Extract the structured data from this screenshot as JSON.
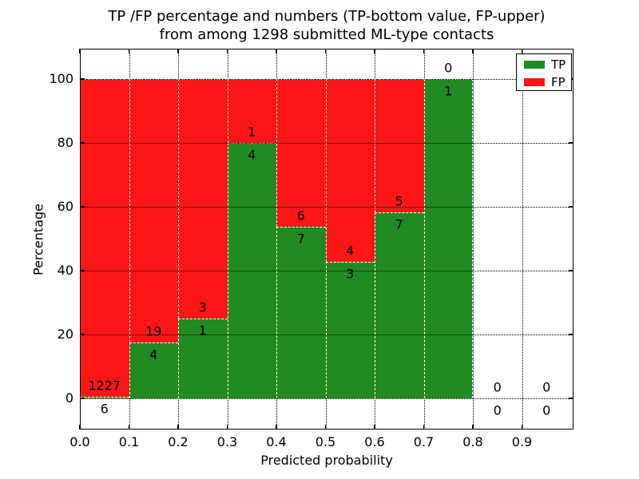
{
  "chart_data": {
    "type": "bar",
    "variant": "stacked-percentage",
    "title": "TP /FP percentage and numbers (TP-bottom value, FP-upper)\nfrom among 1298 submitted ML-type contacts",
    "xlabel": "Predicted probability",
    "ylabel": "Percentage",
    "total_submitted": 1298,
    "xlim": [
      0.0,
      1.0
    ],
    "ylim": [
      -10,
      110
    ],
    "bin_width": 0.1,
    "grid": true,
    "categories": [
      "0.0-0.1",
      "0.1-0.2",
      "0.2-0.3",
      "0.3-0.4",
      "0.4-0.5",
      "0.5-0.6",
      "0.6-0.7",
      "0.7-0.8",
      "0.8-0.9",
      "0.9-1.0"
    ],
    "x_ticks": [
      "0.0",
      "0.1",
      "0.2",
      "0.3",
      "0.4",
      "0.5",
      "0.6",
      "0.7",
      "0.8",
      "0.9"
    ],
    "y_ticks": [
      0,
      20,
      40,
      60,
      80,
      100
    ],
    "series": [
      {
        "name": "TP",
        "color": "#208b20",
        "values": [
          6,
          4,
          1,
          4,
          7,
          3,
          7,
          1,
          0,
          0
        ]
      },
      {
        "name": "FP",
        "color": "#fd1616",
        "values": [
          1227,
          19,
          3,
          1,
          6,
          4,
          5,
          0,
          0,
          0
        ]
      }
    ],
    "tp_percentages": [
      0.49,
      17.39,
      25.0,
      80.0,
      53.85,
      42.86,
      58.33,
      100.0,
      null,
      null
    ],
    "legend": {
      "position": "upper right",
      "entries": [
        "TP",
        "FP"
      ]
    },
    "colors": {
      "tp": "#208b20",
      "fp": "#fd1616",
      "grid": "#000000",
      "bar_edge": "#ffffff",
      "background": "#ffffff",
      "text": "#000000"
    }
  }
}
